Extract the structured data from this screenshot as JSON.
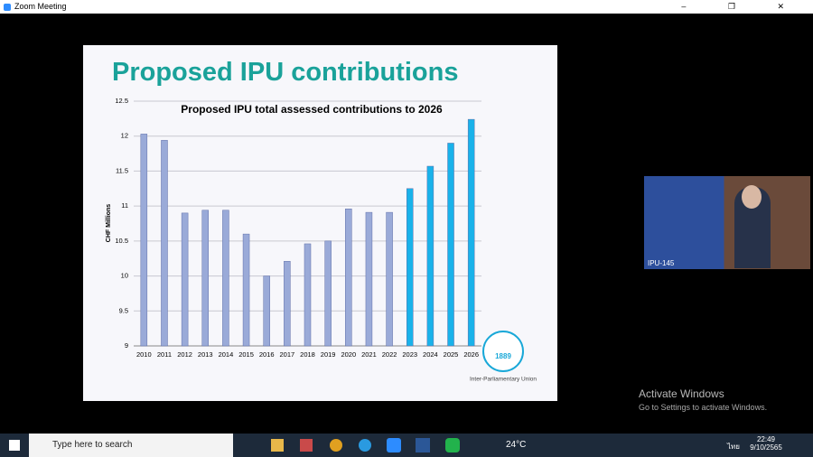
{
  "window": {
    "title": "Zoom Meeting"
  },
  "slide": {
    "title": "Proposed IPU contributions",
    "logo_year": "1889",
    "logo_caption": "Inter-Parliamentary Union"
  },
  "chart_data": {
    "type": "bar",
    "title": "Proposed IPU total assessed contributions to 2026",
    "y_label": "CHF Millions",
    "categories": [
      "2010",
      "2011",
      "2012",
      "2013",
      "2014",
      "2015",
      "2016",
      "2017",
      "2018",
      "2019",
      "2020",
      "2021",
      "2022",
      "2023",
      "2024",
      "2025",
      "2026"
    ],
    "values": [
      12.03,
      11.94,
      10.9,
      10.94,
      10.94,
      10.6,
      10.0,
      10.21,
      10.46,
      10.5,
      10.96,
      10.91,
      10.91,
      11.25,
      11.57,
      11.9,
      12.24
    ],
    "colors": [
      "#9aaad8",
      "#9aaad8",
      "#9aaad8",
      "#9aaad8",
      "#9aaad8",
      "#9aaad8",
      "#9aaad8",
      "#9aaad8",
      "#9aaad8",
      "#9aaad8",
      "#9aaad8",
      "#9aaad8",
      "#9aaad8",
      "#19b2ea",
      "#19b2ea",
      "#19b2ea",
      "#19b2ea"
    ],
    "ylim": [
      9,
      12.5
    ],
    "yticks": [
      9,
      9.5,
      10,
      10.5,
      11,
      11.5,
      12,
      12.5
    ],
    "grid": true
  },
  "video": {
    "participant": "IPU-145"
  },
  "watermark": {
    "title": "Activate Windows",
    "subtitle": "Go to Settings to activate Windows."
  },
  "taskbar": {
    "search": "Type here to search",
    "weather": "24°C",
    "language": "ไทย",
    "time": "22:49",
    "date": "9/10/2565"
  }
}
